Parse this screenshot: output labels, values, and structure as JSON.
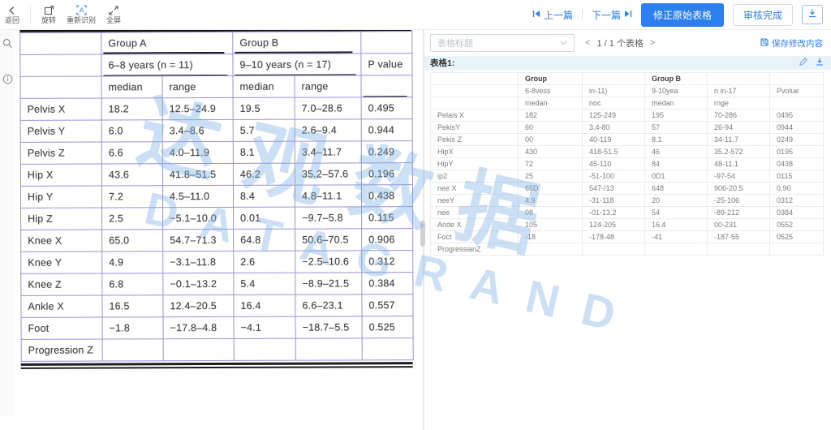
{
  "toolbar": {
    "back": "返回",
    "rotate": "旋转",
    "rerecognize": "重新识别",
    "fullscreen": "全屏",
    "prev": "上一篇",
    "next": "下一篇",
    "fix_table_button": "修正原始表格",
    "review_done_button": "审核完成"
  },
  "left_panel": {
    "table": {
      "group_a": "Group A",
      "group_b": "Group B",
      "group_a_sub": "6–8 years (n = 11)",
      "group_b_sub": "9–10 years (n = 17)",
      "p_header": "P value",
      "sub_headers": [
        "median",
        "range",
        "median",
        "range"
      ],
      "rows": [
        [
          "Pelvis X",
          "18.2",
          "12.5–24.9",
          "19.5",
          "7.0–28.6",
          "0.495"
        ],
        [
          "Pelvis Y",
          "6.0",
          "3.4–8.6",
          "5.7",
          "2.6–9.4",
          "0.944"
        ],
        [
          "Pelvis Z",
          "6.6",
          "4.0–11.9",
          "8.1",
          "3.4–11.7",
          "0.249"
        ],
        [
          "Hip X",
          "43.6",
          "41.8–51.5",
          "46.2",
          "35.2–57.6",
          "0.196"
        ],
        [
          "Hip Y",
          "7.2",
          "4.5–11.0",
          "8.4",
          "4.8–11.1",
          "0.438"
        ],
        [
          "Hip Z",
          "2.5",
          "−5.1–10.0",
          "0.01",
          "−9.7–5.8",
          "0.115"
        ],
        [
          "Knee X",
          "65.0",
          "54.7–71.3",
          "64.8",
          "50.6–70.5",
          "0.906"
        ],
        [
          "Knee Y",
          "4.9",
          "−3.1–11.8",
          "2.6",
          "−2.5–10.6",
          "0.312"
        ],
        [
          "Knee Z",
          "6.8",
          "−0.1–13.2",
          "5.4",
          "−8.9–21.5",
          "0.384"
        ],
        [
          "Ankle X",
          "16.5",
          "12.4–20.5",
          "16.4",
          "6.6–23.1",
          "0.557"
        ],
        [
          "Foot",
          "−1.8",
          "−17.8–4.8",
          "−4.1",
          "−18.7–5.5",
          "0.525"
        ],
        [
          "Progression Z",
          "",
          "",
          "",
          "",
          ""
        ]
      ]
    }
  },
  "right_panel": {
    "title_placeholder": "表格标题",
    "pager": {
      "prev": "<",
      "text": "1 / 1 个表格",
      "next": ">"
    },
    "save_link": "保存修改内容",
    "table_label": "表格1:",
    "table": {
      "header_row1": [
        "",
        "Group",
        "",
        "Group B",
        "",
        ""
      ],
      "header_row2": [
        "",
        "6-8vess",
        "in-11)",
        "9-10yea",
        "n in-17",
        "Pvolue"
      ],
      "header_row3": [
        "",
        "medan",
        "noc",
        "medan",
        "rnge",
        ""
      ],
      "rows": [
        [
          "Pelais X",
          "182",
          "125-249",
          "195",
          "70-286",
          "0495"
        ],
        [
          "PekisY",
          "60",
          "3.4-80",
          "57",
          "26-94",
          "0944"
        ],
        [
          "Pekis Z",
          "00",
          "40-119",
          "8.1",
          "34-11.7",
          "0249"
        ],
        [
          "HipX",
          "430",
          "418-51.5",
          "46",
          "35.2-572",
          "0195"
        ],
        [
          "HipY",
          "72",
          "45-110",
          "84",
          "48-11.1",
          "0438"
        ],
        [
          "ip2",
          "25",
          "-51-100",
          "0D1",
          "-97-54",
          "0115"
        ],
        [
          "nee X",
          "65D",
          "547-/13",
          "648",
          "906-20.5",
          "0.90"
        ],
        [
          "neeY",
          "4.9",
          "-31-118",
          "20",
          "-25-106",
          "0312"
        ],
        [
          "nee",
          "08",
          "-01-13.2",
          "54",
          "-89-212",
          "0384"
        ],
        [
          "Ande X",
          "105",
          "124-205",
          "16.4",
          "00-231",
          "0552"
        ],
        [
          "Foct",
          "-18",
          "-178-48",
          "-41",
          "-187-55",
          "0525"
        ],
        [
          "ProgressianZ",
          "",
          "",
          "",
          "",
          ""
        ]
      ]
    }
  },
  "watermark": {
    "cn": "达观数据",
    "en": "DATAGRAND"
  },
  "theme": {
    "accent": "#2d7ff0",
    "grid_purple": "#9a92d8",
    "bar_blue": "#e9f3fc",
    "watermark_blue": "#7db2e3"
  }
}
